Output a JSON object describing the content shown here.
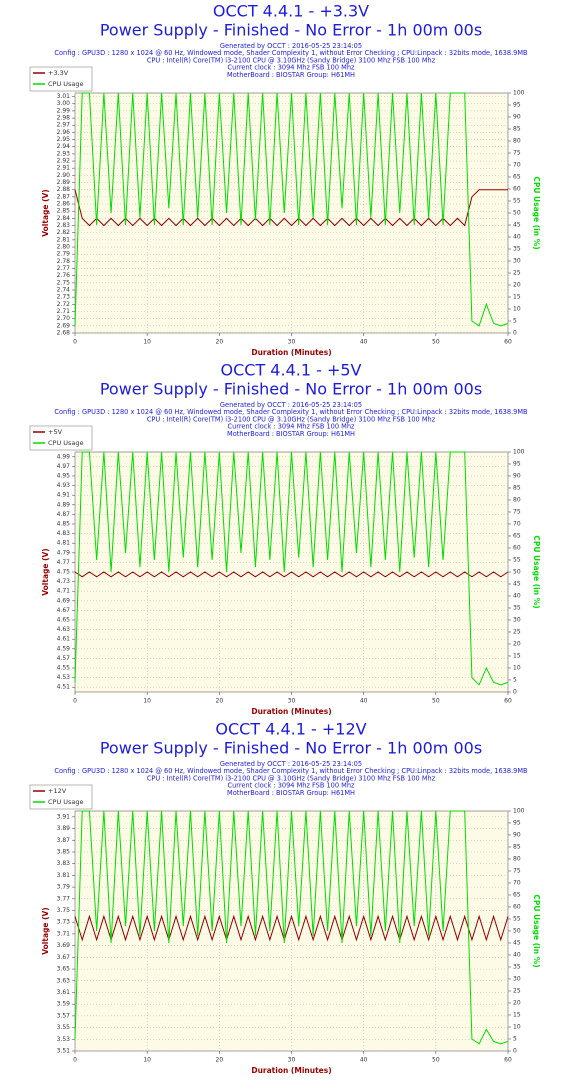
{
  "chart_data": [
    {
      "type": "line",
      "title": "OCCT 4.4.1 - +3.3V",
      "subtitle": "Power Supply - Finished - No Error - 1h 00m 00s",
      "info": [
        "Generated by OCCT : 2016-05-25 23:14:05",
        "Config : GPU3D : 1280 x 1024 @ 60 Hz, Windowed mode, Shader Complexity 1, without Error Checking ; CPU:Linpack : 32bits mode, 1638.9MB",
        "CPU : Intel(R) Core(TM) i3-2100 CPU @ 3.10GHz (Sandy Bridge) 3100 Mhz FSB 100 Mhz",
        "Current clock : 3094 Mhz FSB 100 Mhz",
        "MotherBoard : BIOSTAR Group: H61MH"
      ],
      "xlabel": "Duration (Minutes)",
      "ylabel": "Voltage (V)",
      "y2label": "CPU Usage (in %)",
      "legend": "upper-left",
      "grid": true,
      "x": [
        0,
        1,
        2,
        3,
        4,
        5,
        6,
        7,
        8,
        9,
        10,
        11,
        12,
        13,
        14,
        15,
        16,
        17,
        18,
        19,
        20,
        21,
        22,
        23,
        24,
        25,
        26,
        27,
        28,
        29,
        30,
        31,
        32,
        33,
        34,
        35,
        36,
        37,
        38,
        39,
        40,
        41,
        42,
        43,
        44,
        45,
        46,
        47,
        48,
        49,
        50,
        51,
        52,
        53,
        54,
        55,
        56,
        57,
        58,
        59,
        60
      ],
      "series": [
        {
          "name": "+3.3V",
          "color": "#990000",
          "values": [
            2.88,
            2.84,
            2.83,
            2.84,
            2.83,
            2.84,
            2.83,
            2.84,
            2.83,
            2.84,
            2.83,
            2.84,
            2.83,
            2.84,
            2.83,
            2.84,
            2.83,
            2.84,
            2.83,
            2.84,
            2.83,
            2.84,
            2.83,
            2.84,
            2.83,
            2.84,
            2.83,
            2.84,
            2.83,
            2.84,
            2.83,
            2.84,
            2.83,
            2.84,
            2.83,
            2.84,
            2.83,
            2.84,
            2.83,
            2.84,
            2.83,
            2.84,
            2.83,
            2.84,
            2.83,
            2.84,
            2.83,
            2.84,
            2.83,
            2.84,
            2.83,
            2.84,
            2.83,
            2.84,
            2.83,
            2.87,
            2.88,
            2.88,
            2.88,
            2.88,
            2.88
          ]
        },
        {
          "name": "CPU Usage",
          "color": "#00dd00",
          "axis": "y2",
          "values": [
            3,
            100,
            100,
            45,
            100,
            50,
            100,
            45,
            100,
            48,
            100,
            45,
            100,
            52,
            100,
            45,
            100,
            48,
            100,
            45,
            100,
            50,
            100,
            45,
            100,
            47,
            100,
            45,
            100,
            50,
            100,
            45,
            100,
            48,
            100,
            45,
            100,
            52,
            100,
            45,
            100,
            48,
            100,
            45,
            100,
            50,
            100,
            45,
            100,
            48,
            100,
            45,
            100,
            100,
            100,
            5,
            3,
            12,
            4,
            3,
            4
          ]
        }
      ],
      "xlim": [
        0,
        60
      ],
      "xticks": [
        0,
        10,
        20,
        30,
        40,
        50,
        60
      ],
      "ylim": [
        2.68,
        3.015
      ],
      "yticks": [
        2.68,
        2.69,
        {
          "value": 2.7,
          "label": "2.70"
        },
        2.71,
        2.72,
        2.73,
        2.74,
        2.75,
        2.76,
        2.77,
        2.78,
        2.79,
        {
          "value": 2.8,
          "label": "2.80"
        },
        2.81,
        2.82,
        2.83,
        2.84,
        2.85,
        2.86,
        2.87,
        2.88,
        2.89,
        {
          "value": 2.9,
          "label": "2.90"
        },
        2.91,
        2.92,
        2.93,
        2.94,
        2.95,
        2.96,
        2.97,
        2.98,
        2.99,
        {
          "value": 3,
          "label": "3.00"
        },
        3.01
      ],
      "y2lim": [
        0,
        100
      ],
      "y2ticks": [
        0,
        5,
        10,
        15,
        20,
        25,
        30,
        35,
        40,
        45,
        50,
        55,
        60,
        65,
        70,
        75,
        80,
        85,
        90,
        95,
        100
      ]
    },
    {
      "type": "line",
      "title": "OCCT 4.4.1 - +5V",
      "subtitle": "Power Supply - Finished - No Error - 1h 00m 00s",
      "info": [
        "Generated by OCCT : 2016-05-25 23:14:05",
        "Config : GPU3D : 1280 x 1024 @ 60 Hz, Windowed mode, Shader Complexity 1, without Error Checking ; CPU:Linpack : 32bits mode, 1638.9MB",
        "CPU : Intel(R) Core(TM) i3-2100 CPU @ 3.10GHz (Sandy Bridge) 3100 Mhz FSB 100 Mhz",
        "Current clock : 3094 Mhz FSB 100 Mhz",
        "MotherBoard : BIOSTAR Group: H61MH"
      ],
      "xlabel": "Duration (Minutes)",
      "ylabel": "Voltage (V)",
      "y2label": "CPU Usage (in %)",
      "legend": "upper-left",
      "grid": true,
      "x": [
        0,
        1,
        2,
        3,
        4,
        5,
        6,
        7,
        8,
        9,
        10,
        11,
        12,
        13,
        14,
        15,
        16,
        17,
        18,
        19,
        20,
        21,
        22,
        23,
        24,
        25,
        26,
        27,
        28,
        29,
        30,
        31,
        32,
        33,
        34,
        35,
        36,
        37,
        38,
        39,
        40,
        41,
        42,
        43,
        44,
        45,
        46,
        47,
        48,
        49,
        50,
        51,
        52,
        53,
        54,
        55,
        56,
        57,
        58,
        59,
        60
      ],
      "series": [
        {
          "name": "+5V",
          "color": "#990000",
          "values": [
            4.75,
            4.74,
            4.75,
            4.74,
            4.75,
            4.74,
            4.75,
            4.74,
            4.75,
            4.74,
            4.75,
            4.74,
            4.75,
            4.74,
            4.75,
            4.74,
            4.75,
            4.74,
            4.75,
            4.74,
            4.75,
            4.74,
            4.75,
            4.74,
            4.75,
            4.74,
            4.75,
            4.74,
            4.75,
            4.74,
            4.75,
            4.74,
            4.75,
            4.74,
            4.75,
            4.74,
            4.75,
            4.74,
            4.75,
            4.74,
            4.75,
            4.74,
            4.75,
            4.74,
            4.75,
            4.74,
            4.75,
            4.74,
            4.75,
            4.74,
            4.75,
            4.74,
            4.75,
            4.74,
            4.75,
            4.74,
            4.75,
            4.74,
            4.75,
            4.74,
            4.75
          ]
        },
        {
          "name": "CPU Usage",
          "color": "#00dd00",
          "axis": "y2",
          "values": [
            4,
            100,
            100,
            55,
            100,
            50,
            100,
            58,
            100,
            52,
            100,
            55,
            100,
            50,
            100,
            56,
            100,
            52,
            100,
            55,
            100,
            50,
            100,
            58,
            100,
            52,
            100,
            55,
            100,
            50,
            100,
            56,
            100,
            52,
            100,
            55,
            100,
            50,
            100,
            58,
            100,
            52,
            100,
            55,
            100,
            50,
            100,
            56,
            100,
            52,
            100,
            55,
            100,
            100,
            100,
            6,
            3,
            10,
            4,
            3,
            4
          ]
        }
      ],
      "xlim": [
        0,
        60
      ],
      "xticks": [
        0,
        10,
        20,
        30,
        40,
        50,
        60
      ],
      "ylim": [
        4.5,
        5.0
      ],
      "yticks": [
        4.51,
        4.53,
        4.55,
        4.57,
        4.59,
        4.61,
        4.63,
        4.65,
        4.67,
        4.69,
        4.71,
        4.73,
        4.75,
        4.77,
        4.79,
        4.81,
        4.83,
        4.85,
        4.87,
        4.89,
        4.91,
        4.93,
        4.95,
        4.97,
        4.99
      ],
      "y2lim": [
        0,
        100
      ],
      "y2ticks": [
        0,
        5,
        10,
        15,
        20,
        25,
        30,
        35,
        40,
        45,
        50,
        55,
        60,
        65,
        70,
        75,
        80,
        85,
        90,
        95,
        100
      ]
    },
    {
      "type": "line",
      "title": "OCCT 4.4.1 - +12V",
      "subtitle": "Power Supply - Finished - No Error - 1h 00m 00s",
      "info": [
        "Generated by OCCT : 2016-05-25 23:14:05",
        "Config : GPU3D : 1280 x 1024 @ 60 Hz, Windowed mode, Shader Complexity 1, without Error Checking ; CPU:Linpack : 32bits mode, 1638.9MB",
        "CPU : Intel(R) Core(TM) i3-2100 CPU @ 3.10GHz (Sandy Bridge) 3100 Mhz FSB 100 Mhz",
        "Current clock : 3094 Mhz FSB 100 Mhz",
        "MotherBoard : BIOSTAR Group: H61MH"
      ],
      "xlabel": "Duration (Minutes)",
      "ylabel": "Voltage (V)",
      "y2label": "CPU Usage (in %)",
      "legend": "upper-left",
      "grid": true,
      "x": [
        0,
        1,
        2,
        3,
        4,
        5,
        6,
        7,
        8,
        9,
        10,
        11,
        12,
        13,
        14,
        15,
        16,
        17,
        18,
        19,
        20,
        21,
        22,
        23,
        24,
        25,
        26,
        27,
        28,
        29,
        30,
        31,
        32,
        33,
        34,
        35,
        36,
        37,
        38,
        39,
        40,
        41,
        42,
        43,
        44,
        45,
        46,
        47,
        48,
        49,
        50,
        51,
        52,
        53,
        54,
        55,
        56,
        57,
        58,
        59,
        60
      ],
      "series": [
        {
          "name": "+12V",
          "color": "#990000",
          "values": [
            3.74,
            3.7,
            3.74,
            3.7,
            3.74,
            3.7,
            3.74,
            3.7,
            3.74,
            3.7,
            3.74,
            3.7,
            3.74,
            3.7,
            3.74,
            3.7,
            3.74,
            3.7,
            3.74,
            3.7,
            3.74,
            3.7,
            3.74,
            3.7,
            3.74,
            3.7,
            3.74,
            3.7,
            3.74,
            3.7,
            3.74,
            3.7,
            3.74,
            3.7,
            3.74,
            3.7,
            3.74,
            3.7,
            3.74,
            3.7,
            3.74,
            3.7,
            3.74,
            3.7,
            3.74,
            3.7,
            3.74,
            3.7,
            3.74,
            3.7,
            3.74,
            3.7,
            3.74,
            3.7,
            3.74,
            3.7,
            3.74,
            3.7,
            3.74,
            3.7,
            3.74
          ]
        },
        {
          "name": "CPU Usage",
          "color": "#00dd00",
          "axis": "y2",
          "values": [
            5,
            100,
            100,
            50,
            100,
            45,
            100,
            52,
            100,
            48,
            100,
            50,
            100,
            45,
            100,
            52,
            100,
            48,
            100,
            50,
            100,
            45,
            100,
            52,
            100,
            48,
            100,
            50,
            100,
            45,
            100,
            52,
            100,
            48,
            100,
            50,
            100,
            45,
            100,
            52,
            100,
            48,
            100,
            50,
            100,
            45,
            100,
            52,
            100,
            48,
            100,
            50,
            100,
            100,
            100,
            5,
            3,
            9,
            4,
            3,
            4
          ]
        }
      ],
      "xlim": [
        0,
        60
      ],
      "xticks": [
        0,
        10,
        20,
        30,
        40,
        50,
        60
      ],
      "ylim": [
        3.51,
        3.92
      ],
      "yticks": [
        3.51,
        3.53,
        3.55,
        3.57,
        3.59,
        3.61,
        3.63,
        3.65,
        3.67,
        3.69,
        3.71,
        3.73,
        3.75,
        3.77,
        3.79,
        3.81,
        3.83,
        3.85,
        3.87,
        3.89,
        3.91
      ],
      "y2lim": [
        0,
        100
      ],
      "y2ticks": [
        0,
        5,
        10,
        15,
        20,
        25,
        30,
        35,
        40,
        45,
        50,
        55,
        60,
        65,
        70,
        75,
        80,
        85,
        90,
        95,
        100
      ]
    }
  ]
}
